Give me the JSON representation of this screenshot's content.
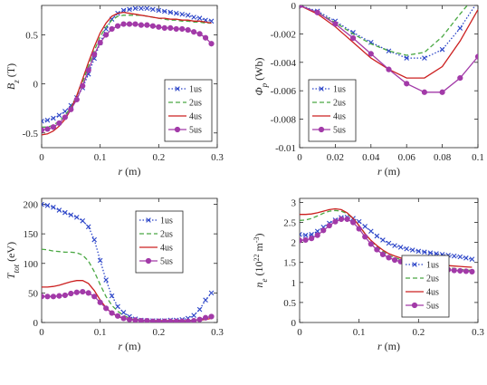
{
  "chart_data": [
    {
      "type": "line",
      "ylabel": "B_z (T)",
      "xlabel": "r (m)",
      "xlim": [
        0,
        0.3
      ],
      "ylim": [
        -0.65,
        0.8
      ],
      "xticks": [
        "0",
        "0.1",
        "0.2",
        "0.3"
      ],
      "yticks": [
        "-0.5",
        "0",
        "0.5"
      ],
      "xtick_values": [
        0,
        0.1,
        0.2,
        0.3
      ],
      "ytick_values": [
        -0.5,
        0,
        0.5
      ],
      "legend_position": "lower-right",
      "series": [
        {
          "name": "1us",
          "color": "#2c45c8",
          "style": "dotted-x",
          "x": [
            0,
            0.01,
            0.02,
            0.03,
            0.04,
            0.05,
            0.06,
            0.07,
            0.08,
            0.09,
            0.1,
            0.11,
            0.12,
            0.13,
            0.14,
            0.15,
            0.16,
            0.17,
            0.18,
            0.19,
            0.2,
            0.21,
            0.22,
            0.23,
            0.24,
            0.25,
            0.26,
            0.27,
            0.28,
            0.29
          ],
          "y": [
            -0.38,
            -0.37,
            -0.35,
            -0.32,
            -0.28,
            -0.22,
            -0.14,
            -0.04,
            0.1,
            0.26,
            0.42,
            0.56,
            0.66,
            0.72,
            0.75,
            0.76,
            0.77,
            0.77,
            0.77,
            0.76,
            0.75,
            0.74,
            0.73,
            0.72,
            0.71,
            0.7,
            0.68,
            0.67,
            0.65,
            0.64
          ]
        },
        {
          "name": "2us",
          "color": "#4aa843",
          "style": "dashed",
          "x": [
            0,
            0.01,
            0.02,
            0.03,
            0.04,
            0.05,
            0.06,
            0.07,
            0.08,
            0.09,
            0.1,
            0.11,
            0.12,
            0.13,
            0.14,
            0.15,
            0.16,
            0.17,
            0.18,
            0.19,
            0.2,
            0.21,
            0.22,
            0.23,
            0.24,
            0.25,
            0.26,
            0.27,
            0.28,
            0.29
          ],
          "y": [
            -0.44,
            -0.44,
            -0.42,
            -0.38,
            -0.32,
            -0.24,
            -0.12,
            0.02,
            0.18,
            0.34,
            0.48,
            0.58,
            0.65,
            0.69,
            0.7,
            0.7,
            0.7,
            0.7,
            0.69,
            0.68,
            0.67,
            0.66,
            0.65,
            0.65,
            0.64,
            0.64,
            0.63,
            0.63,
            0.62,
            0.62
          ]
        },
        {
          "name": "4us",
          "color": "#cc2020",
          "style": "solid",
          "x": [
            0,
            0.01,
            0.02,
            0.03,
            0.04,
            0.05,
            0.06,
            0.07,
            0.08,
            0.09,
            0.1,
            0.11,
            0.12,
            0.13,
            0.14,
            0.15,
            0.16,
            0.17,
            0.18,
            0.19,
            0.2,
            0.21,
            0.22,
            0.23,
            0.24,
            0.25,
            0.26,
            0.27,
            0.28,
            0.29
          ],
          "y": [
            -0.52,
            -0.51,
            -0.48,
            -0.43,
            -0.36,
            -0.26,
            -0.12,
            0.05,
            0.22,
            0.38,
            0.52,
            0.62,
            0.69,
            0.72,
            0.73,
            0.72,
            0.71,
            0.7,
            0.69,
            0.68,
            0.67,
            0.67,
            0.66,
            0.66,
            0.65,
            0.65,
            0.64,
            0.64,
            0.63,
            0.62
          ]
        },
        {
          "name": "5us",
          "color": "#a23aa8",
          "style": "solid-dot",
          "x": [
            0,
            0.01,
            0.02,
            0.03,
            0.04,
            0.05,
            0.06,
            0.07,
            0.08,
            0.09,
            0.1,
            0.11,
            0.12,
            0.13,
            0.14,
            0.15,
            0.16,
            0.17,
            0.18,
            0.19,
            0.2,
            0.21,
            0.22,
            0.23,
            0.24,
            0.25,
            0.26,
            0.27,
            0.28,
            0.29
          ],
          "y": [
            -0.47,
            -0.46,
            -0.44,
            -0.4,
            -0.34,
            -0.26,
            -0.16,
            -0.02,
            0.14,
            0.3,
            0.42,
            0.5,
            0.56,
            0.59,
            0.61,
            0.61,
            0.61,
            0.6,
            0.6,
            0.59,
            0.58,
            0.57,
            0.57,
            0.56,
            0.56,
            0.55,
            0.53,
            0.51,
            0.47,
            0.41
          ]
        }
      ]
    },
    {
      "type": "line",
      "ylabel": "Φ_p (Wb)",
      "xlabel": "r (m)",
      "xlim": [
        0,
        0.1
      ],
      "ylim": [
        -0.01,
        0
      ],
      "xticks": [
        "0",
        "0.02",
        "0.04",
        "0.06",
        "0.08",
        "0.1"
      ],
      "yticks": [
        "-0.01",
        "-0.008",
        "-0.006",
        "-0.004",
        "-0.002",
        "0"
      ],
      "xtick_values": [
        0,
        0.02,
        0.04,
        0.06,
        0.08,
        0.1
      ],
      "ytick_values": [
        -0.01,
        -0.008,
        -0.006,
        -0.004,
        -0.002,
        0
      ],
      "legend_position": "lower-left",
      "series": [
        {
          "name": "1us",
          "color": "#2c45c8",
          "style": "dotted-x",
          "x": [
            0,
            0.01,
            0.02,
            0.03,
            0.04,
            0.05,
            0.06,
            0.07,
            0.08,
            0.09,
            0.1
          ],
          "y": [
            0,
            -0.0004,
            -0.0011,
            -0.0019,
            -0.0026,
            -0.0032,
            -0.0037,
            -0.0037,
            -0.0031,
            -0.0016,
            0.0003
          ]
        },
        {
          "name": "2us",
          "color": "#4aa843",
          "style": "dashed",
          "x": [
            0,
            0.01,
            0.02,
            0.03,
            0.04,
            0.05,
            0.06,
            0.07,
            0.08,
            0.09,
            0.094
          ],
          "y": [
            0,
            -0.0005,
            -0.0012,
            -0.002,
            -0.0027,
            -0.0032,
            -0.0035,
            -0.0033,
            -0.0022,
            -0.0006,
            0
          ]
        },
        {
          "name": "4us",
          "color": "#cc2020",
          "style": "solid",
          "x": [
            0,
            0.01,
            0.02,
            0.03,
            0.04,
            0.05,
            0.06,
            0.07,
            0.08,
            0.09,
            0.1
          ],
          "y": [
            0,
            -0.0006,
            -0.0015,
            -0.0026,
            -0.0037,
            -0.0045,
            -0.0051,
            -0.0051,
            -0.0043,
            -0.0025,
            -0.0003
          ]
        },
        {
          "name": "5us",
          "color": "#a23aa8",
          "style": "solid-dot",
          "x": [
            0,
            0.01,
            0.02,
            0.03,
            0.04,
            0.05,
            0.06,
            0.07,
            0.08,
            0.09,
            0.1
          ],
          "y": [
            0,
            -0.0005,
            -0.0013,
            -0.0023,
            -0.0034,
            -0.0045,
            -0.0055,
            -0.0061,
            -0.0061,
            -0.0051,
            -0.0036
          ]
        }
      ]
    },
    {
      "type": "line",
      "ylabel": "T_tot (eV)",
      "xlabel": "r (m)",
      "xlim": [
        0,
        0.3
      ],
      "ylim": [
        0,
        210
      ],
      "xticks": [
        "0",
        "0.1",
        "0.2",
        "0.3"
      ],
      "yticks": [
        "0",
        "50",
        "100",
        "150",
        "200"
      ],
      "xtick_values": [
        0,
        0.1,
        0.2,
        0.3
      ],
      "ytick_values": [
        0,
        50,
        100,
        150,
        200
      ],
      "legend_position": "upper-right",
      "series": [
        {
          "name": "1us",
          "color": "#2c45c8",
          "style": "dotted-x",
          "x": [
            0,
            0.01,
            0.02,
            0.03,
            0.04,
            0.05,
            0.06,
            0.07,
            0.08,
            0.09,
            0.1,
            0.11,
            0.12,
            0.13,
            0.14,
            0.15,
            0.16,
            0.17,
            0.18,
            0.19,
            0.2,
            0.21,
            0.22,
            0.23,
            0.24,
            0.25,
            0.26,
            0.27,
            0.28,
            0.29
          ],
          "y": [
            200,
            198,
            195,
            190,
            186,
            182,
            178,
            172,
            162,
            140,
            105,
            72,
            45,
            27,
            17,
            10,
            6,
            4,
            3,
            3,
            3,
            3,
            4,
            4,
            5,
            7,
            12,
            22,
            38,
            50
          ]
        },
        {
          "name": "2us",
          "color": "#4aa843",
          "style": "dashed",
          "x": [
            0,
            0.01,
            0.02,
            0.03,
            0.04,
            0.05,
            0.06,
            0.07,
            0.08,
            0.09,
            0.1,
            0.11,
            0.12,
            0.13,
            0.14,
            0.15,
            0.16,
            0.17,
            0.18,
            0.19,
            0.2,
            0.21,
            0.22,
            0.23,
            0.24,
            0.25,
            0.26,
            0.27,
            0.28,
            0.29
          ],
          "y": [
            124,
            123,
            121,
            120,
            119,
            119,
            118,
            114,
            104,
            86,
            64,
            44,
            29,
            19,
            12,
            7,
            5,
            4,
            3,
            3,
            3,
            3,
            3,
            3,
            3,
            3,
            4,
            5,
            7,
            9
          ]
        },
        {
          "name": "4us",
          "color": "#cc2020",
          "style": "solid",
          "x": [
            0,
            0.01,
            0.02,
            0.03,
            0.04,
            0.05,
            0.06,
            0.07,
            0.08,
            0.09,
            0.1,
            0.11,
            0.12,
            0.13,
            0.14,
            0.15,
            0.16,
            0.17,
            0.18,
            0.19,
            0.2,
            0.21,
            0.22,
            0.23,
            0.24,
            0.25,
            0.26,
            0.27,
            0.28,
            0.29
          ],
          "y": [
            60,
            60,
            61,
            63,
            66,
            69,
            71,
            71,
            66,
            54,
            38,
            25,
            16,
            10,
            7,
            5,
            4,
            3,
            3,
            3,
            3,
            3,
            3,
            3,
            3,
            3,
            3,
            4,
            5,
            7
          ]
        },
        {
          "name": "5us",
          "color": "#a23aa8",
          "style": "solid-dot",
          "x": [
            0,
            0.01,
            0.02,
            0.03,
            0.04,
            0.05,
            0.06,
            0.07,
            0.08,
            0.09,
            0.1,
            0.11,
            0.12,
            0.13,
            0.14,
            0.15,
            0.16,
            0.17,
            0.18,
            0.19,
            0.2,
            0.21,
            0.22,
            0.23,
            0.24,
            0.25,
            0.26,
            0.27,
            0.28,
            0.29
          ],
          "y": [
            44,
            44,
            44,
            45,
            46,
            49,
            51,
            52,
            50,
            44,
            34,
            24,
            16,
            11,
            7,
            5,
            4,
            3,
            3,
            2,
            2,
            2,
            2,
            2,
            2,
            2,
            3,
            5,
            8,
            10
          ]
        }
      ]
    },
    {
      "type": "line",
      "ylabel": "n_e (10^22 m^-3)",
      "xlabel": "r (m)",
      "xlim": [
        0,
        0.3
      ],
      "ylim": [
        0,
        3.1
      ],
      "xticks": [
        "0",
        "0.1",
        "0.2",
        "0.3"
      ],
      "yticks": [
        "0",
        "0.5",
        "1",
        "1.5",
        "2",
        "2.5",
        "3"
      ],
      "xtick_values": [
        0,
        0.1,
        0.2,
        0.3
      ],
      "ytick_values": [
        0,
        0.5,
        1,
        1.5,
        2,
        2.5,
        3
      ],
      "legend_position": "lower-right",
      "series": [
        {
          "name": "1us",
          "color": "#2c45c8",
          "style": "dotted-x",
          "x": [
            0,
            0.01,
            0.02,
            0.03,
            0.04,
            0.05,
            0.06,
            0.07,
            0.08,
            0.09,
            0.1,
            0.11,
            0.12,
            0.13,
            0.14,
            0.15,
            0.16,
            0.17,
            0.18,
            0.19,
            0.2,
            0.21,
            0.22,
            0.23,
            0.24,
            0.25,
            0.26,
            0.27,
            0.28,
            0.29
          ],
          "y": [
            2.2,
            2.18,
            2.2,
            2.28,
            2.38,
            2.48,
            2.56,
            2.62,
            2.63,
            2.6,
            2.52,
            2.4,
            2.28,
            2.16,
            2.06,
            1.98,
            1.92,
            1.88,
            1.84,
            1.81,
            1.78,
            1.76,
            1.74,
            1.72,
            1.7,
            1.68,
            1.66,
            1.64,
            1.61,
            1.58
          ]
        },
        {
          "name": "2us",
          "color": "#4aa843",
          "style": "dashed",
          "x": [
            0,
            0.01,
            0.02,
            0.03,
            0.04,
            0.05,
            0.06,
            0.07,
            0.08,
            0.09,
            0.1,
            0.11,
            0.12,
            0.13,
            0.14,
            0.15,
            0.16,
            0.17,
            0.18,
            0.19,
            0.2,
            0.21,
            0.22,
            0.23,
            0.24,
            0.25,
            0.26,
            0.27,
            0.28,
            0.29
          ],
          "y": [
            2.55,
            2.56,
            2.6,
            2.66,
            2.73,
            2.78,
            2.8,
            2.78,
            2.72,
            2.6,
            2.42,
            2.22,
            2.04,
            1.9,
            1.78,
            1.68,
            1.62,
            1.57,
            1.53,
            1.5,
            1.47,
            1.45,
            1.43,
            1.41,
            1.39,
            1.37,
            1.35,
            1.33,
            1.31,
            1.3
          ]
        },
        {
          "name": "4us",
          "color": "#cc2020",
          "style": "solid",
          "x": [
            0,
            0.01,
            0.02,
            0.03,
            0.04,
            0.05,
            0.06,
            0.07,
            0.08,
            0.09,
            0.1,
            0.11,
            0.12,
            0.13,
            0.14,
            0.15,
            0.16,
            0.17,
            0.18,
            0.19,
            0.2,
            0.21,
            0.22,
            0.23,
            0.24,
            0.25,
            0.26,
            0.27,
            0.28,
            0.29
          ],
          "y": [
            2.7,
            2.7,
            2.71,
            2.74,
            2.78,
            2.82,
            2.84,
            2.82,
            2.74,
            2.6,
            2.42,
            2.22,
            2.05,
            1.92,
            1.81,
            1.72,
            1.66,
            1.61,
            1.57,
            1.54,
            1.51,
            1.49,
            1.47,
            1.45,
            1.44,
            1.42,
            1.41,
            1.4,
            1.39,
            1.38
          ]
        },
        {
          "name": "5us",
          "color": "#a23aa8",
          "style": "solid-dot",
          "x": [
            0,
            0.01,
            0.02,
            0.03,
            0.04,
            0.05,
            0.06,
            0.07,
            0.08,
            0.09,
            0.1,
            0.11,
            0.12,
            0.13,
            0.14,
            0.15,
            0.16,
            0.17,
            0.18,
            0.19,
            0.2,
            0.21,
            0.22,
            0.23,
            0.24,
            0.25,
            0.26,
            0.27,
            0.28,
            0.29
          ],
          "y": [
            2.05,
            2.06,
            2.1,
            2.18,
            2.3,
            2.42,
            2.52,
            2.58,
            2.58,
            2.5,
            2.34,
            2.14,
            1.96,
            1.82,
            1.7,
            1.62,
            1.56,
            1.52,
            1.48,
            1.45,
            1.42,
            1.4,
            1.38,
            1.36,
            1.34,
            1.32,
            1.3,
            1.29,
            1.28,
            1.27
          ]
        }
      ]
    }
  ]
}
